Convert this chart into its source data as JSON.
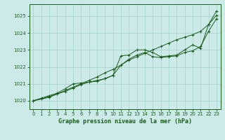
{
  "title": "Graphe pression niveau de la mer (hPa)",
  "bg_color": "#cceae8",
  "grid_color": "#aad4d0",
  "line_color": "#1a5c1a",
  "marker_color": "#1a5c1a",
  "xlim": [
    -0.5,
    23.5
  ],
  "ylim": [
    1019.5,
    1025.7
  ],
  "xticks": [
    0,
    1,
    2,
    3,
    4,
    5,
    6,
    7,
    8,
    9,
    10,
    11,
    12,
    13,
    14,
    15,
    16,
    17,
    18,
    19,
    20,
    21,
    22,
    23
  ],
  "yticks": [
    1020,
    1021,
    1022,
    1023,
    1024,
    1025
  ],
  "series1_smooth": {
    "x": [
      0,
      1,
      2,
      3,
      4,
      5,
      6,
      7,
      8,
      9,
      10,
      11,
      12,
      13,
      14,
      15,
      16,
      17,
      18,
      19,
      20,
      21,
      22,
      23
    ],
    "y": [
      1020.0,
      1020.1,
      1020.25,
      1020.4,
      1020.6,
      1020.8,
      1021.0,
      1021.2,
      1021.4,
      1021.65,
      1021.85,
      1022.1,
      1022.4,
      1022.6,
      1022.8,
      1023.0,
      1023.2,
      1023.4,
      1023.6,
      1023.75,
      1023.9,
      1024.1,
      1024.5,
      1025.3
    ]
  },
  "series2_upper": {
    "x": [
      0,
      1,
      2,
      3,
      4,
      5,
      6,
      7,
      8,
      9,
      10,
      11,
      12,
      13,
      14,
      15,
      16,
      17,
      18,
      19,
      20,
      21,
      22,
      23
    ],
    "y": [
      1020.0,
      1020.15,
      1020.3,
      1020.45,
      1020.7,
      1021.0,
      1021.05,
      1021.1,
      1021.15,
      1021.3,
      1021.5,
      1022.65,
      1022.7,
      1023.0,
      1023.0,
      1022.85,
      1022.6,
      1022.65,
      1022.7,
      1023.0,
      1023.3,
      1023.1,
      1024.5,
      1025.05
    ]
  },
  "series3_lower": {
    "x": [
      0,
      1,
      2,
      3,
      4,
      5,
      6,
      7,
      8,
      9,
      10,
      11,
      12,
      13,
      14,
      15,
      16,
      17,
      18,
      19,
      20,
      21,
      22,
      23
    ],
    "y": [
      1020.0,
      1020.1,
      1020.2,
      1020.4,
      1020.55,
      1020.75,
      1020.95,
      1021.1,
      1021.2,
      1021.3,
      1021.5,
      1022.1,
      1022.45,
      1022.7,
      1022.85,
      1022.6,
      1022.55,
      1022.6,
      1022.65,
      1022.85,
      1022.95,
      1023.2,
      1024.1,
      1024.85
    ]
  }
}
